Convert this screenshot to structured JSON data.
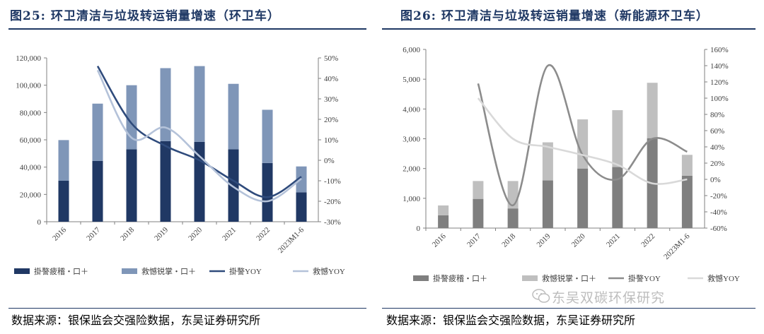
{
  "left": {
    "title": "图25:  环卫清洁与垃圾转运销量增速（环卫车）",
    "source": "数据来源：银保监会交强险数据，东吴证券研究所"
  },
  "right": {
    "title": "图26:  环卫清洁与垃圾转运销量增速（新能源环卫车）",
    "source": "数据来源：银保监会交强险数据，东吴证券研究所"
  },
  "watermark": "东吴双碳环保研究",
  "chart_data": [
    {
      "type": "bar",
      "stacked": true,
      "categories": [
        "2016",
        "2017",
        "2018",
        "2019",
        "2020",
        "2021",
        "2022",
        "2023M1-6"
      ],
      "y_left": {
        "min": 0,
        "max": 120000,
        "ticks": [
          "0",
          "20,000",
          "40,000",
          "60,000",
          "80,000",
          "100,000",
          "120,000"
        ]
      },
      "y_right": {
        "min": -30,
        "max": 50,
        "ticks": [
          "-30%",
          "-20%",
          "-10%",
          "0%",
          "10%",
          "20%",
          "30%",
          "40%",
          "50%"
        ]
      },
      "series": [
        {
          "name": "掛謷疲稽・口＋",
          "kind": "bar",
          "axis": "left",
          "color": "#203864",
          "values": [
            30000,
            44500,
            53000,
            59000,
            58500,
            53000,
            43000,
            21500
          ]
        },
        {
          "name": "救憾锐掌・口＋",
          "kind": "bar",
          "axis": "left",
          "color": "#7f96b8",
          "values": [
            29800,
            42000,
            47000,
            53500,
            55500,
            48000,
            39000,
            19000
          ]
        },
        {
          "name": "掛謷YOY",
          "kind": "line",
          "axis": "right",
          "color": "#2f4b7c",
          "values": [
            null,
            46,
            18,
            7,
            0,
            -10,
            -18,
            -8
          ]
        },
        {
          "name": "救憾YOY",
          "kind": "line",
          "axis": "right",
          "color": "#b4c2d9",
          "values": [
            null,
            44,
            11,
            16,
            2,
            -13,
            -20,
            -9
          ]
        }
      ],
      "grid": false,
      "legend": "bottom"
    },
    {
      "type": "bar",
      "stacked": true,
      "categories": [
        "2016",
        "2017",
        "2018",
        "2019",
        "2020",
        "2021",
        "2022",
        "2023M1-6"
      ],
      "y_left": {
        "min": 0,
        "max": 6000,
        "ticks": [
          "0",
          "1,000",
          "2,000",
          "3,000",
          "4,000",
          "5,000",
          "6,000"
        ]
      },
      "y_right": {
        "min": -60,
        "max": 160,
        "ticks": [
          "-60%",
          "-40%",
          "-20%",
          "0%",
          "20%",
          "40%",
          "60%",
          "80%",
          "100%",
          "120%",
          "140%",
          "160%"
        ]
      },
      "series": [
        {
          "name": "掛謷疲稽・口＋",
          "kind": "bar",
          "axis": "left",
          "color": "#7f7f7f",
          "values": [
            430,
            980,
            660,
            1600,
            2000,
            2050,
            3020,
            1760
          ]
        },
        {
          "name": "救憾锐掌・口＋",
          "kind": "bar",
          "axis": "left",
          "color": "#bfbfbf",
          "values": [
            330,
            600,
            920,
            1280,
            1650,
            1910,
            1860,
            700
          ]
        },
        {
          "name": "掛謷YOY",
          "kind": "line",
          "axis": "right",
          "color": "#8c8c8c",
          "values": [
            null,
            118,
            -32,
            140,
            30,
            0,
            50,
            34
          ]
        },
        {
          "name": "救憾YOY",
          "kind": "line",
          "axis": "right",
          "color": "#d9d9d9",
          "values": [
            null,
            100,
            50,
            40,
            30,
            18,
            -5,
            0
          ]
        }
      ],
      "grid": false,
      "legend": "bottom"
    }
  ]
}
